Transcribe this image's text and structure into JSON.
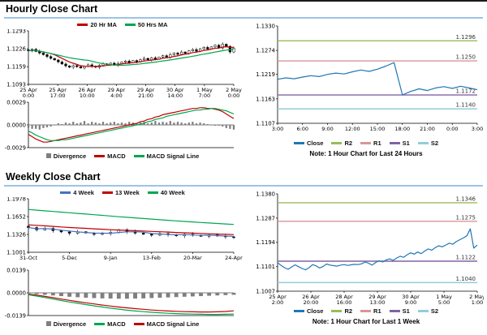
{
  "sections": {
    "hourly": {
      "title": "Hourly Close Chart"
    },
    "weekly": {
      "title": "Weekly Close Chart"
    }
  },
  "colors": {
    "accent_rule": "#9DC3E6",
    "ma_fast_red": "#C00000",
    "ma_slow_green": "#00A651",
    "close_blue": "#1F77B4",
    "r2": "#9BBB59",
    "r1": "#D99694",
    "s1": "#8064A2",
    "s2": "#92CDDC",
    "divergence_gray": "#7F7F7F"
  },
  "chart_data": [
    {
      "id": "hourly-price",
      "type": "candlestick",
      "title": "Hourly Close Chart",
      "ylim": [
        1.1093,
        1.1293
      ],
      "yticks": [
        "1.1293",
        "1.1226",
        "1.1159",
        "1.1093"
      ],
      "xticks": [
        [
          "25 Apr",
          "0:00"
        ],
        [
          "25 Apr",
          "17:00"
        ],
        [
          "26 Apr",
          "10:00"
        ],
        [
          "29 Apr",
          "4:00"
        ],
        [
          "29 Apr",
          "21:00"
        ],
        [
          "30 Apr",
          "14:00"
        ],
        [
          "1 May",
          "7:00"
        ],
        [
          "2 May",
          "0:00"
        ]
      ],
      "wick": [
        0.0002,
        0.0006
      ],
      "legend": [
        {
          "label": "20 Hr MA",
          "color": "#C00000"
        },
        {
          "label": "50 Hrs MA",
          "color": "#00A651"
        }
      ],
      "candles": [
        1.1218,
        1.1224,
        1.1216,
        1.121,
        1.1204,
        1.1197,
        1.119,
        1.1184,
        1.1177,
        1.1169,
        1.1162,
        1.1157,
        1.1163,
        1.1159,
        1.1154,
        1.116,
        1.1166,
        1.1161,
        1.1157,
        1.1164,
        1.117,
        1.1167,
        1.1172,
        1.1165,
        1.1171,
        1.1176,
        1.118,
        1.1174,
        1.1182,
        1.1177,
        1.1185,
        1.119,
        1.1185,
        1.1192,
        1.1187,
        1.1195,
        1.12,
        1.1195,
        1.1204,
        1.121,
        1.1205,
        1.1214,
        1.1209,
        1.1218,
        1.1223,
        1.1217,
        1.1226,
        1.1231,
        1.1225,
        1.1233,
        1.1239,
        1.1229,
        1.1243,
        1.1235,
        1.1214,
        1.1228
      ],
      "series": [
        {
          "name": "20 Hr MA",
          "color": "#C00000",
          "ma_window": 7
        },
        {
          "name": "50 Hrs MA",
          "color": "#00A651",
          "ma_window": 17
        }
      ]
    },
    {
      "id": "hourly-macd",
      "type": "macd",
      "ylim": [
        -0.0029,
        0.0029
      ],
      "yticks": [
        "0.0029",
        "0.0000",
        "-0.0029"
      ],
      "xticks": [],
      "divergence_color": "#7F7F7F",
      "legend": [
        {
          "label": "Divergence",
          "color": "#7F7F7F",
          "marker": "bar"
        },
        {
          "label": "MACD",
          "color": "#C00000"
        },
        {
          "label": "MACD Signal Line",
          "color": "#00A651"
        }
      ],
      "divergence": [
        -0.0004,
        -0.0005,
        -0.0005,
        -0.0006,
        -0.0004,
        -0.0003,
        -0.0002,
        0.0,
        0.0002,
        0.0001,
        0.0003,
        0.0002,
        0.0004,
        0.0002,
        0.0003,
        0.0005,
        0.0002,
        0.0004,
        0.0003,
        0.0002,
        0.0004,
        0.0002,
        0.0003,
        0.0004,
        0.0002,
        0.0003,
        0.0002,
        0.0004,
        0.0003,
        0.0002,
        0.0003,
        0.0004,
        0.0002,
        0.0003,
        0.0005,
        0.0003,
        0.0004,
        0.0003,
        0.0005,
        0.0003,
        0.0004,
        0.0003,
        0.0002,
        0.0003,
        0.0004,
        0.0002,
        0.0003,
        0.0002,
        0.0001,
        0.0,
        -0.0001,
        -0.0001,
        -0.0002,
        -0.0004,
        -0.0005,
        -0.0006
      ],
      "series": [
        {
          "name": "MACD",
          "color": "#C00000",
          "values": [
            -0.0012,
            -0.0015,
            -0.0018,
            -0.002,
            -0.0022,
            -0.0022,
            -0.0021,
            -0.002,
            -0.0019,
            -0.0018,
            -0.0017,
            -0.0016,
            -0.0015,
            -0.0014,
            -0.0013,
            -0.0012,
            -0.0011,
            -0.001,
            -0.0009,
            -0.0008,
            -0.0007,
            -0.0006,
            -0.0005,
            -0.0004,
            -0.0003,
            -0.0002,
            -0.0001,
            0.0,
            0.0001,
            0.0002,
            0.0004,
            0.0005,
            0.0007,
            0.0008,
            0.001,
            0.0011,
            0.0013,
            0.0014,
            0.0015,
            0.0016,
            0.0017,
            0.0018,
            0.0019,
            0.002,
            0.0021,
            0.0021,
            0.0022,
            0.0022,
            0.0021,
            0.0021,
            0.002,
            0.0019,
            0.0017,
            0.0014,
            0.0011,
            0.0008
          ]
        },
        {
          "name": "MACD Signal Line",
          "color": "#00A651",
          "values": [
            -0.0008,
            -0.001,
            -0.0013,
            -0.0015,
            -0.0017,
            -0.0019,
            -0.002,
            -0.002,
            -0.002,
            -0.0019,
            -0.0019,
            -0.0018,
            -0.0017,
            -0.0016,
            -0.0015,
            -0.0014,
            -0.0013,
            -0.0012,
            -0.0011,
            -0.001,
            -0.0009,
            -0.0008,
            -0.0007,
            -0.0006,
            -0.0005,
            -0.0004,
            -0.0003,
            -0.0002,
            -0.0001,
            0.0,
            0.0001,
            0.0002,
            0.0004,
            0.0005,
            0.0007,
            0.0008,
            0.0009,
            0.0011,
            0.0012,
            0.0013,
            0.0014,
            0.0015,
            0.0016,
            0.0017,
            0.0018,
            0.0019,
            0.0019,
            0.002,
            0.002,
            0.0021,
            0.0021,
            0.002,
            0.0019,
            0.0018,
            0.0016,
            0.0014
          ]
        }
      ]
    },
    {
      "id": "hourly-pivot",
      "type": "line",
      "note": "Note: 1 Hour Chart for Last 24 Hours",
      "ylim": [
        1.1107,
        1.133
      ],
      "yticks": [
        "1.1330",
        "1.1274",
        "1.1219",
        "1.1163",
        "1.1107"
      ],
      "xticks": [
        "3:00",
        "6:00",
        "9:00",
        "12:00",
        "15:00",
        "18:00",
        "21:00",
        "0:00",
        "3:00"
      ],
      "hlines": [
        {
          "name": "R2",
          "value": 1.1296,
          "label": "1.1296",
          "color": "#9BBB59"
        },
        {
          "name": "R1",
          "value": 1.125,
          "label": "1.1250",
          "color": "#D99694"
        },
        {
          "name": "S1",
          "value": 1.1172,
          "label": "1.1172",
          "color": "#8064A2"
        },
        {
          "name": "S2",
          "value": 1.114,
          "label": "1.1140",
          "color": "#92CDDC"
        }
      ],
      "legend": [
        {
          "label": "Close",
          "color": "#1F77B4"
        },
        {
          "label": "R2",
          "color": "#9BBB59"
        },
        {
          "label": "R1",
          "color": "#D99694"
        },
        {
          "label": "S1",
          "color": "#8064A2"
        },
        {
          "label": "S2",
          "color": "#92CDDC"
        }
      ],
      "series": [
        {
          "name": "Close",
          "color": "#1F77B4",
          "values": [
            1.1208,
            1.1211,
            1.1209,
            1.1213,
            1.1216,
            1.1214,
            1.1219,
            1.1222,
            1.122,
            1.1225,
            1.1229,
            1.1226,
            1.1231,
            1.1238,
            1.1246,
            1.1172,
            1.118,
            1.1186,
            1.1182,
            1.1188,
            1.1191,
            1.1187,
            1.1192,
            1.1188,
            1.1184
          ]
        }
      ]
    },
    {
      "id": "weekly-price",
      "type": "candlestick",
      "title": "Weekly Close Chart",
      "ylim": [
        1.1001,
        1.1978
      ],
      "yticks": [
        "1.1978",
        "1.1652",
        "1.1326",
        "1.1001"
      ],
      "xticks": [
        "31-Oct",
        "5-Dec",
        "9-Jan",
        "13-Feb",
        "20-Mar",
        "24-Apr"
      ],
      "wick": [
        0.0012,
        0.0035
      ],
      "legend": [
        {
          "label": "4 Week",
          "color": "#4472C4"
        },
        {
          "label": "13 Week",
          "color": "#C00000"
        },
        {
          "label": "40 Week",
          "color": "#00A651"
        }
      ],
      "candles": [
        1.1452,
        1.141,
        1.1438,
        1.1396,
        1.1372,
        1.1348,
        1.1376,
        1.1352,
        1.1328,
        1.1342,
        1.1365,
        1.1412,
        1.1378,
        1.135,
        1.133,
        1.1312,
        1.1342,
        1.1322,
        1.1302,
        1.133,
        1.1312,
        1.1292,
        1.1318,
        1.1298,
        1.1282,
        1.1268
      ],
      "series": [
        {
          "name": "4 Week",
          "color": "#4472C4",
          "ma_window": 4
        },
        {
          "name": "13 Week",
          "color": "#C00000",
          "values": [
            1.1502,
            1.1492,
            1.1483,
            1.1473,
            1.1463,
            1.1453,
            1.1445,
            1.1437,
            1.1429,
            1.1421,
            1.1413,
            1.1407,
            1.1401,
            1.1395,
            1.1389,
            1.1382,
            1.1375,
            1.1369,
            1.1362,
            1.1356,
            1.135,
            1.1344,
            1.1338,
            1.1333,
            1.1328,
            1.1323
          ]
        },
        {
          "name": "40 Week",
          "color": "#00A651",
          "values": [
            1.1782,
            1.177,
            1.1758,
            1.1746,
            1.1734,
            1.1722,
            1.171,
            1.1698,
            1.1686,
            1.1674,
            1.1662,
            1.165,
            1.1639,
            1.1628,
            1.1617,
            1.1606,
            1.1595,
            1.1584,
            1.1574,
            1.1564,
            1.1554,
            1.1544,
            1.1535,
            1.1526,
            1.1517,
            1.1509
          ]
        }
      ]
    },
    {
      "id": "weekly-macd",
      "type": "macd",
      "ylim": [
        -0.0139,
        0.0139
      ],
      "yticks": [
        "0.0139",
        "0.0000",
        "-0.0139"
      ],
      "xticks": [],
      "divergence_color": "#7F7F7F",
      "legend": [
        {
          "label": "Divergence",
          "color": "#7F7F7F",
          "marker": "bar"
        },
        {
          "label": "MACD",
          "color": "#00A651"
        },
        {
          "label": "MACD Signal Line",
          "color": "#C00000"
        }
      ],
      "divergence": [
        -0.0004,
        -0.0008,
        -0.0012,
        -0.0016,
        -0.002,
        -0.0024,
        -0.0027,
        -0.003,
        -0.0032,
        -0.0034,
        -0.0035,
        -0.0036,
        -0.0036,
        -0.0035,
        -0.0034,
        -0.0032,
        -0.003,
        -0.0028,
        -0.0026,
        -0.0024,
        -0.0022,
        -0.002,
        -0.0018,
        -0.0016,
        -0.0014,
        -0.0012
      ],
      "series": [
        {
          "name": "MACD",
          "color": "#C00000",
          "values": [
            -0.0008,
            -0.0014,
            -0.0022,
            -0.003,
            -0.0038,
            -0.0046,
            -0.0054,
            -0.0061,
            -0.0068,
            -0.0075,
            -0.0081,
            -0.0087,
            -0.0092,
            -0.0097,
            -0.0101,
            -0.0105,
            -0.0108,
            -0.0111,
            -0.0113,
            -0.0115,
            -0.0116,
            -0.0117,
            -0.0117,
            -0.0116,
            -0.0114,
            -0.011
          ]
        },
        {
          "name": "MACD Signal Line",
          "color": "#00A651",
          "values": [
            -0.0012,
            -0.002,
            -0.0029,
            -0.0038,
            -0.0047,
            -0.0056,
            -0.0064,
            -0.0072,
            -0.008,
            -0.0087,
            -0.0094,
            -0.01,
            -0.0106,
            -0.0111,
            -0.0115,
            -0.0119,
            -0.0122,
            -0.0125,
            -0.0127,
            -0.0129,
            -0.013,
            -0.0131,
            -0.0132,
            -0.0132,
            -0.0131,
            -0.013
          ]
        }
      ]
    },
    {
      "id": "weekly-pivot",
      "type": "line",
      "note": "Note: 1 Hour Chart for Last 1 Week",
      "ylim": [
        1.1007,
        1.138
      ],
      "yticks": [
        "1.1380",
        "1.1287",
        "1.1194",
        "1.1101",
        "1.1007"
      ],
      "xticks": [
        [
          "25 Apr",
          "2:00"
        ],
        [
          "26 Apr",
          "20:00"
        ],
        [
          "28 Apr",
          "16:00"
        ],
        [
          "29 Apr",
          "13:00"
        ],
        [
          "30 Apr",
          "9:00"
        ],
        [
          "1 May",
          "5:00"
        ],
        [
          "2 May",
          "1:00"
        ]
      ],
      "hlines": [
        {
          "name": "R2",
          "value": 1.1346,
          "label": "1.1346",
          "color": "#9BBB59"
        },
        {
          "name": "R1",
          "value": 1.1275,
          "label": "1.1275",
          "color": "#D99694"
        },
        {
          "name": "S1",
          "value": 1.1122,
          "label": "1.1122",
          "color": "#8064A2"
        },
        {
          "name": "S2",
          "value": 1.104,
          "label": "1.1040",
          "color": "#92CDDC"
        }
      ],
      "legend": [
        {
          "label": "Close",
          "color": "#1F77B4"
        },
        {
          "label": "R2",
          "color": "#9BBB59"
        },
        {
          "label": "R1",
          "color": "#D99694"
        },
        {
          "label": "S1",
          "color": "#8064A2"
        },
        {
          "label": "S2",
          "color": "#92CDDC"
        }
      ],
      "series": [
        {
          "name": "Close",
          "color": "#1F77B4",
          "values": [
            1.1116,
            1.1106,
            1.1097,
            1.1091,
            1.11,
            1.1108,
            1.1101,
            1.1094,
            1.1089,
            1.1097,
            1.1109,
            1.1104,
            1.1096,
            1.1102,
            1.1111,
            1.1107,
            1.1105,
            1.1103,
            1.1107,
            1.1109,
            1.1106,
            1.1108,
            1.111,
            1.1109,
            1.1112,
            1.1119,
            1.1114,
            1.1107,
            1.1117,
            1.1124,
            1.1119,
            1.1127,
            1.1131,
            1.1125,
            1.1134,
            1.1141,
            1.1137,
            1.1147,
            1.1154,
            1.1149,
            1.1157,
            1.1151,
            1.1161,
            1.1169,
            1.1164,
            1.1174,
            1.1181,
            1.1177,
            1.1184,
            1.1191,
            1.1187,
            1.1197,
            1.1204,
            1.1211,
            1.1219,
            1.1246,
            1.1172,
            1.1184
          ]
        }
      ]
    }
  ]
}
